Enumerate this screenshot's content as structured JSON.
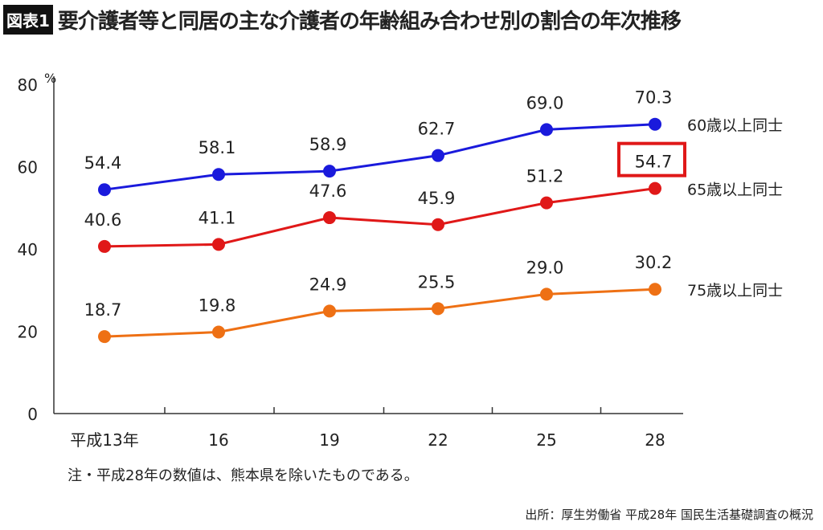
{
  "title": {
    "badge": "図表1",
    "text": "要介護者等と同居の主な介護者の年齢組み合わせ別の割合の年次推移"
  },
  "note": "注・平成28年の数値は、熊本県を除いたものである。",
  "source": "出所：厚生労働省 平成28年 国民生活基礎調査の概況",
  "chart_data": {
    "type": "line",
    "title": "要介護者等と同居の主な介護者の年齢組み合わせ別の割合の年次推移",
    "x": [
      "平成13年",
      "16",
      "19",
      "22",
      "25",
      "28"
    ],
    "ylim": [
      0,
      80
    ],
    "yticks": [
      "0",
      "20",
      "40",
      "60",
      "80"
    ],
    "yunit": "%",
    "series": [
      {
        "name": "60歳以上同士",
        "color": "#1a1adc",
        "values": [
          54.4,
          58.1,
          58.9,
          62.7,
          69.0,
          70.3
        ]
      },
      {
        "name": "65歳以上同士",
        "color": "#e01818",
        "values": [
          40.6,
          41.1,
          47.6,
          45.9,
          51.2,
          54.7
        ]
      },
      {
        "name": "75歳以上同士",
        "color": "#ee7014",
        "values": [
          18.7,
          19.8,
          24.9,
          25.5,
          29.0,
          30.2
        ]
      }
    ],
    "highlight": {
      "series": 1,
      "index": 5,
      "color": "#e01818"
    },
    "grid": false,
    "legend": "right-inline"
  }
}
